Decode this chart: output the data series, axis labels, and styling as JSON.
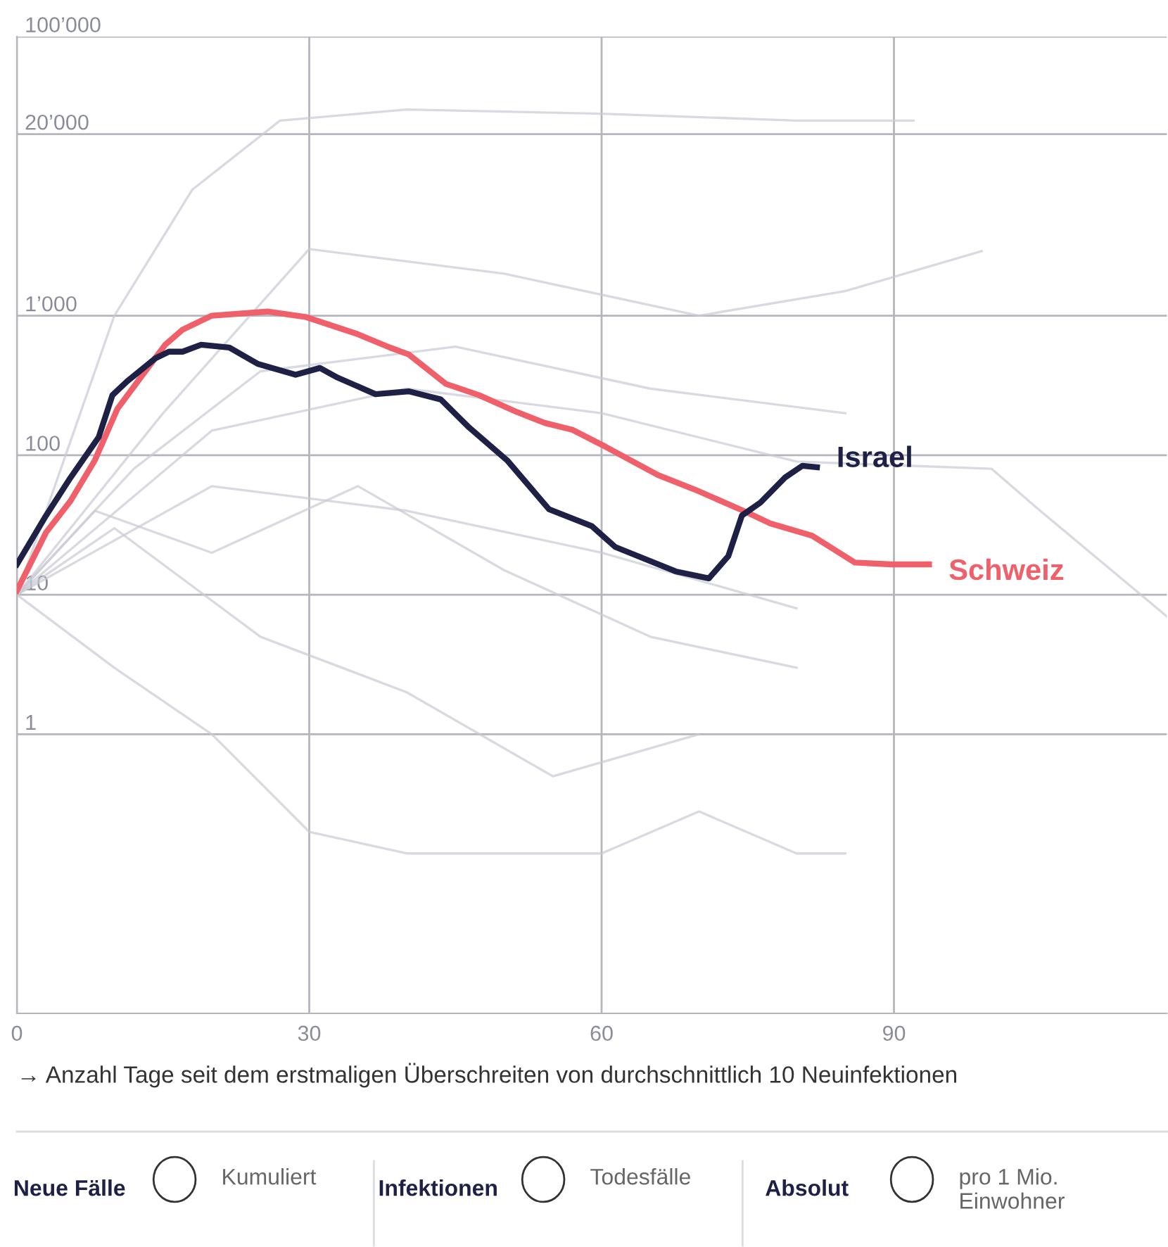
{
  "chart_data": {
    "type": "line",
    "xlabel": "→ Anzahl Tage seit dem erstmaligen Überschreiten von durchschnittlich 10 Neuinfektionen",
    "log": "y",
    "grid": true,
    "legend": false,
    "marker": "none",
    "line_style": "solid",
    "xlim": [
      0,
      118
    ],
    "xticks": [
      0,
      30,
      60,
      90
    ],
    "ylim": [
      0.01,
      100000
    ],
    "yticks": [
      1,
      10,
      100,
      {
        "value": 1000,
        "label": "1’000"
      },
      {
        "value": 20000,
        "label": "20’000"
      },
      {
        "value": 100000,
        "label": "100’000"
      }
    ],
    "series": [
      {
        "color": "#c9cad4",
        "x": [
          0,
          5,
          10,
          18,
          27,
          40,
          60,
          80,
          92
        ],
        "values": [
          10,
          100,
          1000,
          8000,
          25000,
          30000,
          28000,
          25000,
          25000
        ]
      },
      {
        "color": "#c9cad4",
        "x": [
          0,
          15,
          30,
          50,
          70,
          85,
          99
        ],
        "values": [
          10,
          200,
          3000,
          2000,
          1000,
          1500,
          2900
        ]
      },
      {
        "color": "#c9cad4",
        "x": [
          0,
          20,
          40,
          60,
          80,
          100,
          105,
          118
        ],
        "values": [
          10,
          150,
          300,
          200,
          90,
          80,
          40,
          7
        ]
      },
      {
        "color": "#c9cad4",
        "x": [
          0,
          20,
          40,
          60,
          80
        ],
        "values": [
          10,
          60,
          40,
          20,
          8
        ]
      },
      {
        "color": "#c9cad4",
        "x": [
          0,
          10,
          25,
          40,
          55,
          70
        ],
        "values": [
          10,
          30,
          5,
          2,
          0.5,
          1
        ]
      },
      {
        "color": "#c9cad4",
        "x": [
          0,
          10,
          20,
          30,
          40,
          55,
          60,
          70,
          80,
          85
        ],
        "values": [
          10,
          3,
          1,
          0.2,
          0.14,
          0.14,
          0.14,
          0.28,
          0.14,
          0.14
        ]
      },
      {
        "color": "#c9cad4",
        "x": [
          0,
          12,
          25,
          45,
          65,
          85
        ],
        "values": [
          10,
          80,
          400,
          600,
          300,
          200
        ]
      },
      {
        "color": "#c9cad4",
        "x": [
          0,
          8,
          20,
          35,
          50,
          65,
          80
        ],
        "values": [
          10,
          40,
          20,
          60,
          15,
          5,
          3
        ]
      },
      {
        "name": "Schweiz",
        "color": "#f0606a",
        "x": [
          0,
          3,
          5.5,
          8,
          10.3,
          12.7,
          15.2,
          17,
          20,
          25.7,
          29.6,
          34.8,
          38.3,
          40.2,
          44,
          47.4,
          51.3,
          54.2,
          57,
          60.4,
          65.8,
          69.5,
          74.9,
          77.3,
          81.6,
          86,
          89.7,
          93.6
        ],
        "values": [
          10.7,
          28,
          47,
          92,
          214,
          360,
          617,
          794,
          1000,
          1070,
          980,
          745,
          590,
          528,
          325,
          270,
          204,
          170,
          152,
          115,
          72,
          57,
          39,
          32.5,
          26.5,
          17,
          16.5,
          16.5
        ]
      },
      {
        "name": "Israel",
        "color": "#1e2145",
        "x": [
          0,
          3,
          5.5,
          8.4,
          9.8,
          11.3,
          14.2,
          15.6,
          17,
          18.9,
          21.8,
          24.7,
          28.6,
          31.1,
          32.9,
          36.8,
          40.2,
          43.5,
          46.4,
          50.3,
          54.6,
          59,
          61.4,
          67.6,
          71,
          73,
          74.4,
          76.3,
          78.8,
          80.6,
          82.1
        ],
        "values": [
          16.5,
          37,
          69,
          135,
          269,
          338,
          494,
          552,
          552,
          619,
          591,
          452,
          377,
          422,
          360,
          274,
          287,
          251,
          158,
          92,
          41,
          31,
          22,
          14.7,
          13.1,
          18.9,
          37,
          45.8,
          69,
          84,
          82
        ]
      }
    ],
    "annotations": [
      "Neue Fälle",
      "Kumuliert",
      "Infektionen",
      "Todesfälle",
      "Absolut",
      "pro 1 Mio. Einwohner"
    ]
  }
}
